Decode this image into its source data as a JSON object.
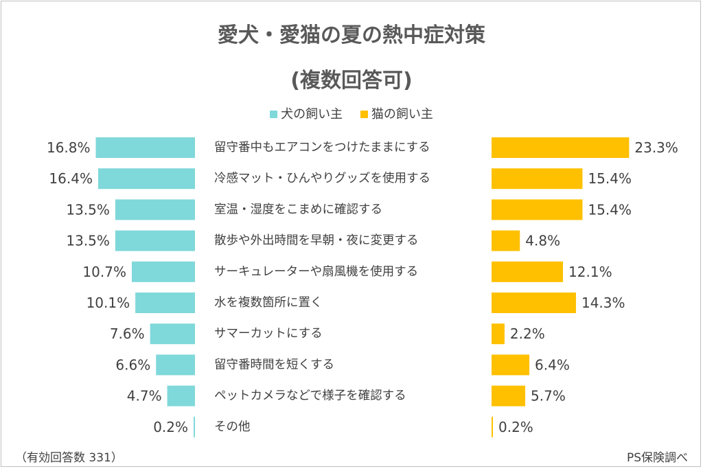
{
  "colors": {
    "dog": "#7fd8da",
    "cat": "#ffc000",
    "text": "#404040"
  },
  "chart_data": {
    "type": "bar",
    "title": "愛犬・愛猫の夏の熱中症対策",
    "subtitle": "(複数回答可)",
    "legend": {
      "placement": "top",
      "entries": [
        "犬の飼い主",
        "猫の飼い主"
      ]
    },
    "categories": [
      "留守番中もエアコンをつけたままにする",
      "冷感マット・ひんやりグッズを使用する",
      "室温・湿度をこまめに確認する",
      "散歩や外出時間を早朝・夜に変更する",
      "サーキュレーターや扇風機を使用する",
      "水を複数箇所に置く",
      "サマーカットにする",
      "留守番時間を短くする",
      "ペットカメラなどで様子を確認する",
      "その他"
    ],
    "series": [
      {
        "name": "犬の飼い主",
        "values": [
          16.8,
          16.4,
          13.5,
          13.5,
          10.7,
          10.1,
          7.6,
          6.6,
          4.7,
          0.2
        ],
        "labels": [
          "16.8%",
          "16.4%",
          "13.5%",
          "13.5%",
          "10.7%",
          "10.1%",
          "7.6%",
          "6.6%",
          "4.7%",
          "0.2%"
        ]
      },
      {
        "name": "猫の飼い主",
        "values": [
          23.3,
          15.4,
          15.4,
          4.8,
          12.1,
          14.3,
          2.2,
          6.4,
          5.7,
          0.2
        ],
        "labels": [
          "23.3%",
          "15.4%",
          "15.4%",
          "4.8%",
          "12.1%",
          "14.3%",
          "2.2%",
          "6.4%",
          "5.7%",
          "0.2%"
        ]
      }
    ],
    "unit": "%",
    "grid": false
  },
  "footer": {
    "left": "（有効回答数 331）",
    "right": "PS保険調べ"
  }
}
